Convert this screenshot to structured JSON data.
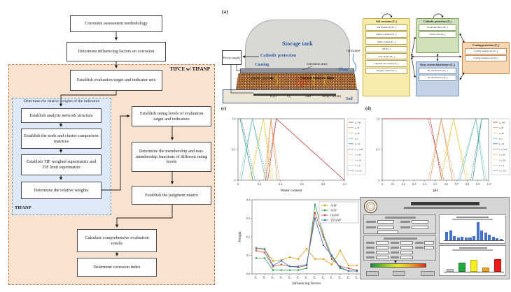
{
  "panels": {
    "a": "(a)",
    "c": "(c)",
    "d": "(d)"
  },
  "flowchart": {
    "step_methodology": "Corrosion assessment methodology",
    "step_factors": "Determine influencing factors on corrosion",
    "outer_label": "TIFCE w/ TIFANP",
    "step_target": "Establish evaluation target and indicator sets",
    "inner_title": "Determine the relative weights of the indicators",
    "step_structure": "Establish analytic network structure",
    "step_matrices": "Establish the node and cluster comparison matrices",
    "step_supermatrix": "Establish TIF weighed supermatrix and TIF limit supermatrix",
    "step_weights": "Determine the relative weights",
    "inner_label": "TIFANP",
    "step_rating": "Establish rating levels of evaluation target and indicators",
    "step_membership": "Determine the membership and non-membership functions of different rating levels",
    "step_judgment": "Establish the judgment matrix",
    "step_calculate": "Calculate comprehensive evaluation results",
    "step_index": "Determine corrosion index"
  },
  "tank": {
    "tank_label": "Storage tank",
    "power_supply": "Power supply",
    "cathodic": "Cathodic protection",
    "coating": "Coating",
    "corrosion_area": "corrosion area",
    "floor": "Floor",
    "rainwater": "rainwater",
    "cracks": "cracks",
    "cushion": "Asphalt sand cushion",
    "h2o": "H₂O",
    "o2": "O₂",
    "salt": "Salt",
    "stray": "Stray current",
    "soil": "Soil"
  },
  "network": {
    "clusters": [
      {
        "title": "Soil corrosion (C₁)",
        "items": [
          "Soil Resistivity (D₁₁)",
          "Redox potential (D₁₂)",
          "Water content (D₁₃)",
          "pH (D₁₄)",
          "Salt content (D₁₅)",
          "Chloride ion content (D₁₆)",
          "Oxygen content (D₁₇)"
        ]
      },
      {
        "title": "Cathodic protection (C₂)",
        "items": [
          "Protection effect (D₂₁)",
          "Service life (D₂₂)"
        ]
      },
      {
        "title": "Stray current interference (C₃)",
        "items": [
          "DC interference (D₃₁)",
          "AC interference (D₃₂)"
        ]
      },
      {
        "title": "Coating protection (C₄)",
        "items": [
          "Coating peeling rate (D₄₁)",
          "Coating breaking rate (D₄₂)"
        ]
      }
    ]
  },
  "chart_data": [
    {
      "type": "line",
      "panel": "(c)",
      "xlabel": "Water content",
      "xlim": [
        0,
        1
      ],
      "xticks": [
        0,
        0.2,
        0.4,
        0.6,
        0.8,
        1.0
      ],
      "ylim": [
        0,
        1
      ],
      "yticks": [
        0,
        0.5,
        1.0
      ],
      "legend_position": "right",
      "grid": false,
      "series": [
        {
          "name": "μ_VH",
          "color": "#bf4440",
          "style": "solid",
          "points": [
            [
              0.28,
              0
            ],
            [
              0.36,
              1
            ],
            [
              1.0,
              0
            ]
          ]
        },
        {
          "name": "μ_H",
          "color": "#e8914a",
          "style": "solid",
          "points": [
            [
              0.26,
              0
            ],
            [
              0.31,
              1
            ],
            [
              0.37,
              0
            ]
          ]
        },
        {
          "name": "μ_M",
          "color": "#e5c94e",
          "style": "solid",
          "points": [
            [
              0.12,
              0
            ],
            [
              0.24,
              1
            ],
            [
              0.31,
              0
            ]
          ]
        },
        {
          "name": "μ_L",
          "color": "#62bdb8",
          "style": "solid",
          "points": [
            [
              0.03,
              0
            ],
            [
              0.135,
              1
            ],
            [
              0.26,
              0
            ]
          ]
        },
        {
          "name": "μ_VL",
          "color": "#2e8f8a",
          "style": "solid",
          "points": [
            [
              0,
              1
            ],
            [
              0.02,
              1
            ],
            [
              0.14,
              0
            ]
          ]
        },
        {
          "name": "1-ν_VH",
          "color": "#bf4440",
          "style": "dashed",
          "points": [
            [
              0.26,
              0
            ],
            [
              0.36,
              1
            ],
            [
              1.0,
              0
            ]
          ]
        },
        {
          "name": "1-ν_H",
          "color": "#e8914a",
          "style": "dashed",
          "points": [
            [
              0.24,
              0
            ],
            [
              0.31,
              1
            ],
            [
              0.39,
              0
            ]
          ]
        },
        {
          "name": "1-ν_M",
          "color": "#e5c94e",
          "style": "dashed",
          "points": [
            [
              0.1,
              0
            ],
            [
              0.24,
              1
            ],
            [
              0.33,
              0
            ]
          ]
        },
        {
          "name": "1-ν_L",
          "color": "#62bdb8",
          "style": "dashed",
          "points": [
            [
              0.01,
              0
            ],
            [
              0.135,
              1
            ],
            [
              0.28,
              0
            ]
          ]
        },
        {
          "name": "1-ν_VL",
          "color": "#2e8f8a",
          "style": "dashed",
          "points": [
            [
              0,
              1
            ],
            [
              0.03,
              1
            ],
            [
              0.16,
              0
            ]
          ]
        }
      ]
    },
    {
      "type": "line",
      "panel": "(d)",
      "xlabel": "pH",
      "xlim": [
        0,
        1
      ],
      "xticks": [
        0,
        0.1,
        0.2,
        0.3,
        0.4,
        0.5,
        0.6,
        0.7,
        0.8,
        0.9,
        1.0
      ],
      "ylim": [
        0,
        1
      ],
      "yticks": [
        0,
        0.5,
        1.0
      ],
      "legend_position": "right",
      "grid": false,
      "series": [
        {
          "name": "μ_VH",
          "color": "#bf4440",
          "style": "solid",
          "points": [
            [
              0,
              1
            ],
            [
              0.45,
              1
            ],
            [
              0.56,
              0
            ]
          ]
        },
        {
          "name": "μ_H",
          "color": "#e8914a",
          "style": "solid",
          "points": [
            [
              0.45,
              0
            ],
            [
              0.555,
              1
            ],
            [
              0.66,
              0
            ]
          ]
        },
        {
          "name": "μ_M",
          "color": "#e5c94e",
          "style": "solid",
          "points": [
            [
              0.555,
              0
            ],
            [
              0.67,
              1
            ],
            [
              0.79,
              0
            ]
          ]
        },
        {
          "name": "μ_L",
          "color": "#62bdb8",
          "style": "solid",
          "points": [
            [
              0.73,
              0
            ],
            [
              0.88,
              1
            ],
            [
              0.96,
              0
            ]
          ]
        },
        {
          "name": "μ_VL",
          "color": "#2e8f8a",
          "style": "solid",
          "points": [
            [
              0.85,
              0
            ],
            [
              0.935,
              1
            ],
            [
              1.0,
              1
            ]
          ]
        },
        {
          "name": "1-ν_VH",
          "color": "#bf4440",
          "style": "dashed",
          "points": [
            [
              0,
              1
            ],
            [
              0.43,
              1
            ],
            [
              0.58,
              0
            ]
          ]
        },
        {
          "name": "1-ν_H",
          "color": "#e8914a",
          "style": "dashed",
          "points": [
            [
              0.43,
              0
            ],
            [
              0.555,
              1
            ],
            [
              0.68,
              0
            ]
          ]
        },
        {
          "name": "1-ν_M",
          "color": "#e5c94e",
          "style": "dashed",
          "points": [
            [
              0.535,
              0
            ],
            [
              0.67,
              1
            ],
            [
              0.81,
              0
            ]
          ]
        },
        {
          "name": "1-ν_L",
          "color": "#62bdb8",
          "style": "dashed",
          "points": [
            [
              0.71,
              0
            ],
            [
              0.88,
              1
            ],
            [
              0.98,
              0
            ]
          ]
        },
        {
          "name": "1-ν_VL",
          "color": "#2e8f8a",
          "style": "dashed",
          "points": [
            [
              0.83,
              0
            ],
            [
              0.935,
              1
            ],
            [
              1.0,
              1
            ]
          ]
        }
      ]
    },
    {
      "type": "line",
      "xlabel": "Influencing factors",
      "ylabel": "Weight",
      "categories": [
        "D₁₁",
        "D₁₂",
        "D₁₃",
        "D₁₄",
        "D₁₅",
        "D₁₆",
        "D₁₇",
        "D₂₁",
        "D₂₂",
        "D₃₁",
        "D₃₂",
        "D₄₁",
        "D₄₂"
      ],
      "ylim": [
        0,
        0.4
      ],
      "yticks": [
        0.0,
        0.1,
        0.2,
        0.3,
        0.4
      ],
      "legend_position": "top-right",
      "grid": false,
      "series": [
        {
          "name": "AHP",
          "color": "#d4a017",
          "values": [
            0.135,
            0.13,
            0.07,
            0.075,
            0.09,
            0.08,
            0.135,
            0.08,
            0.08,
            0.05,
            0.125,
            0.045,
            0.045
          ]
        },
        {
          "name": "ANP",
          "color": "#2e9e4f",
          "values": [
            0.085,
            0.085,
            0.02,
            0.02,
            0.02,
            0.02,
            0.03,
            0.375,
            0.21,
            0.095,
            0.03,
            0.015,
            0.015
          ]
        },
        {
          "name": "IFANP",
          "color": "#cd4a42",
          "values": [
            0.125,
            0.115,
            0.04,
            0.05,
            0.04,
            0.035,
            0.045,
            0.33,
            0.2,
            0.08,
            0.04,
            0.03,
            0.02
          ]
        },
        {
          "name": "TIFANP",
          "color": "#3b6fbd",
          "values": [
            0.14,
            0.135,
            0.045,
            0.07,
            0.04,
            0.04,
            0.05,
            0.3,
            0.155,
            0.1,
            0.035,
            0.015,
            0.015
          ]
        }
      ]
    },
    {
      "type": "bar",
      "name": "software-weights-chart",
      "color": "#4472c4",
      "values": [
        0.45,
        0.55,
        0.22,
        0.15,
        0.2,
        0.15,
        0.14,
        0.22,
        1.0,
        0.52,
        0.42,
        0.3,
        0.2,
        0.12,
        0.08
      ]
    },
    {
      "type": "bar",
      "name": "software-grade-chart",
      "colors": [
        "#c8c8c8",
        "#1fa83c",
        "#f5ef1e",
        "#f5a21e",
        "#ef1c1c"
      ],
      "values": [
        0.06,
        0.42,
        0.55,
        0.14,
        0.6
      ]
    }
  ],
  "software": {
    "gradient_colors": [
      "#0a8f3c",
      "#8cc818",
      "#f0e818",
      "#f0a018",
      "#e82010"
    ]
  }
}
